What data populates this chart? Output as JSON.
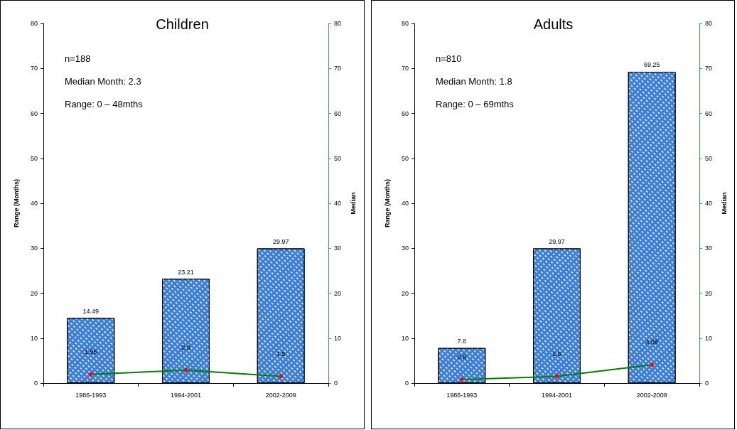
{
  "chart_data": [
    {
      "type": "bar",
      "title": "Children",
      "ylabel": "Range (Months)",
      "y2label": "Median",
      "categories": [
        "1986-1993",
        "1994-2001",
        "2002-2009"
      ],
      "series": [
        {
          "color": "#3a7fd5",
          "values": [
            14.49,
            23.21,
            29.97
          ]
        },
        {
          "type": "line",
          "axis": "y2",
          "color": "#008000",
          "colors": [
            "#ff0000",
            "#ff0000",
            "#ff0000"
          ],
          "marker": "diamond",
          "line_style": "solid",
          "values": [
            1.95,
            2.9,
            1.5
          ]
        }
      ],
      "ylim": [
        0,
        80
      ],
      "yticks": [
        0,
        10,
        20,
        30,
        40,
        50,
        60,
        70,
        80
      ],
      "y2lim": [
        0,
        80
      ],
      "y2ticks": [
        0,
        10,
        20,
        30,
        40,
        50,
        60,
        70,
        80
      ],
      "data_labels": true,
      "grid": false,
      "annotations": [
        "n=188",
        "Median Month: 2.3",
        "Range: 0 – 48mths"
      ]
    },
    {
      "type": "bar",
      "title": "Adults",
      "ylabel": "Range (Months)",
      "y2label": "Median",
      "categories": [
        "1986-1993",
        "1994-2001",
        "2002-2009"
      ],
      "series": [
        {
          "color": "#3a7fd5",
          "values": [
            7.8,
            29.97,
            69.25
          ]
        },
        {
          "type": "line",
          "axis": "y2",
          "color": "#008000",
          "colors": [
            "#ff0000",
            "#ff0000",
            "#ff0000"
          ],
          "marker": "diamond",
          "line_style": "solid",
          "values": [
            0.8,
            1.5,
            4.08
          ]
        }
      ],
      "ylim": [
        0,
        80
      ],
      "yticks": [
        0,
        10,
        20,
        30,
        40,
        50,
        60,
        70,
        80
      ],
      "y2lim": [
        0,
        80
      ],
      "y2ticks": [
        0,
        10,
        20,
        30,
        40,
        50,
        60,
        70,
        80
      ],
      "data_labels": true,
      "grid": false,
      "annotations": [
        "n=810",
        "Median Month: 1.8",
        "Range: 0 – 69mths"
      ]
    }
  ]
}
